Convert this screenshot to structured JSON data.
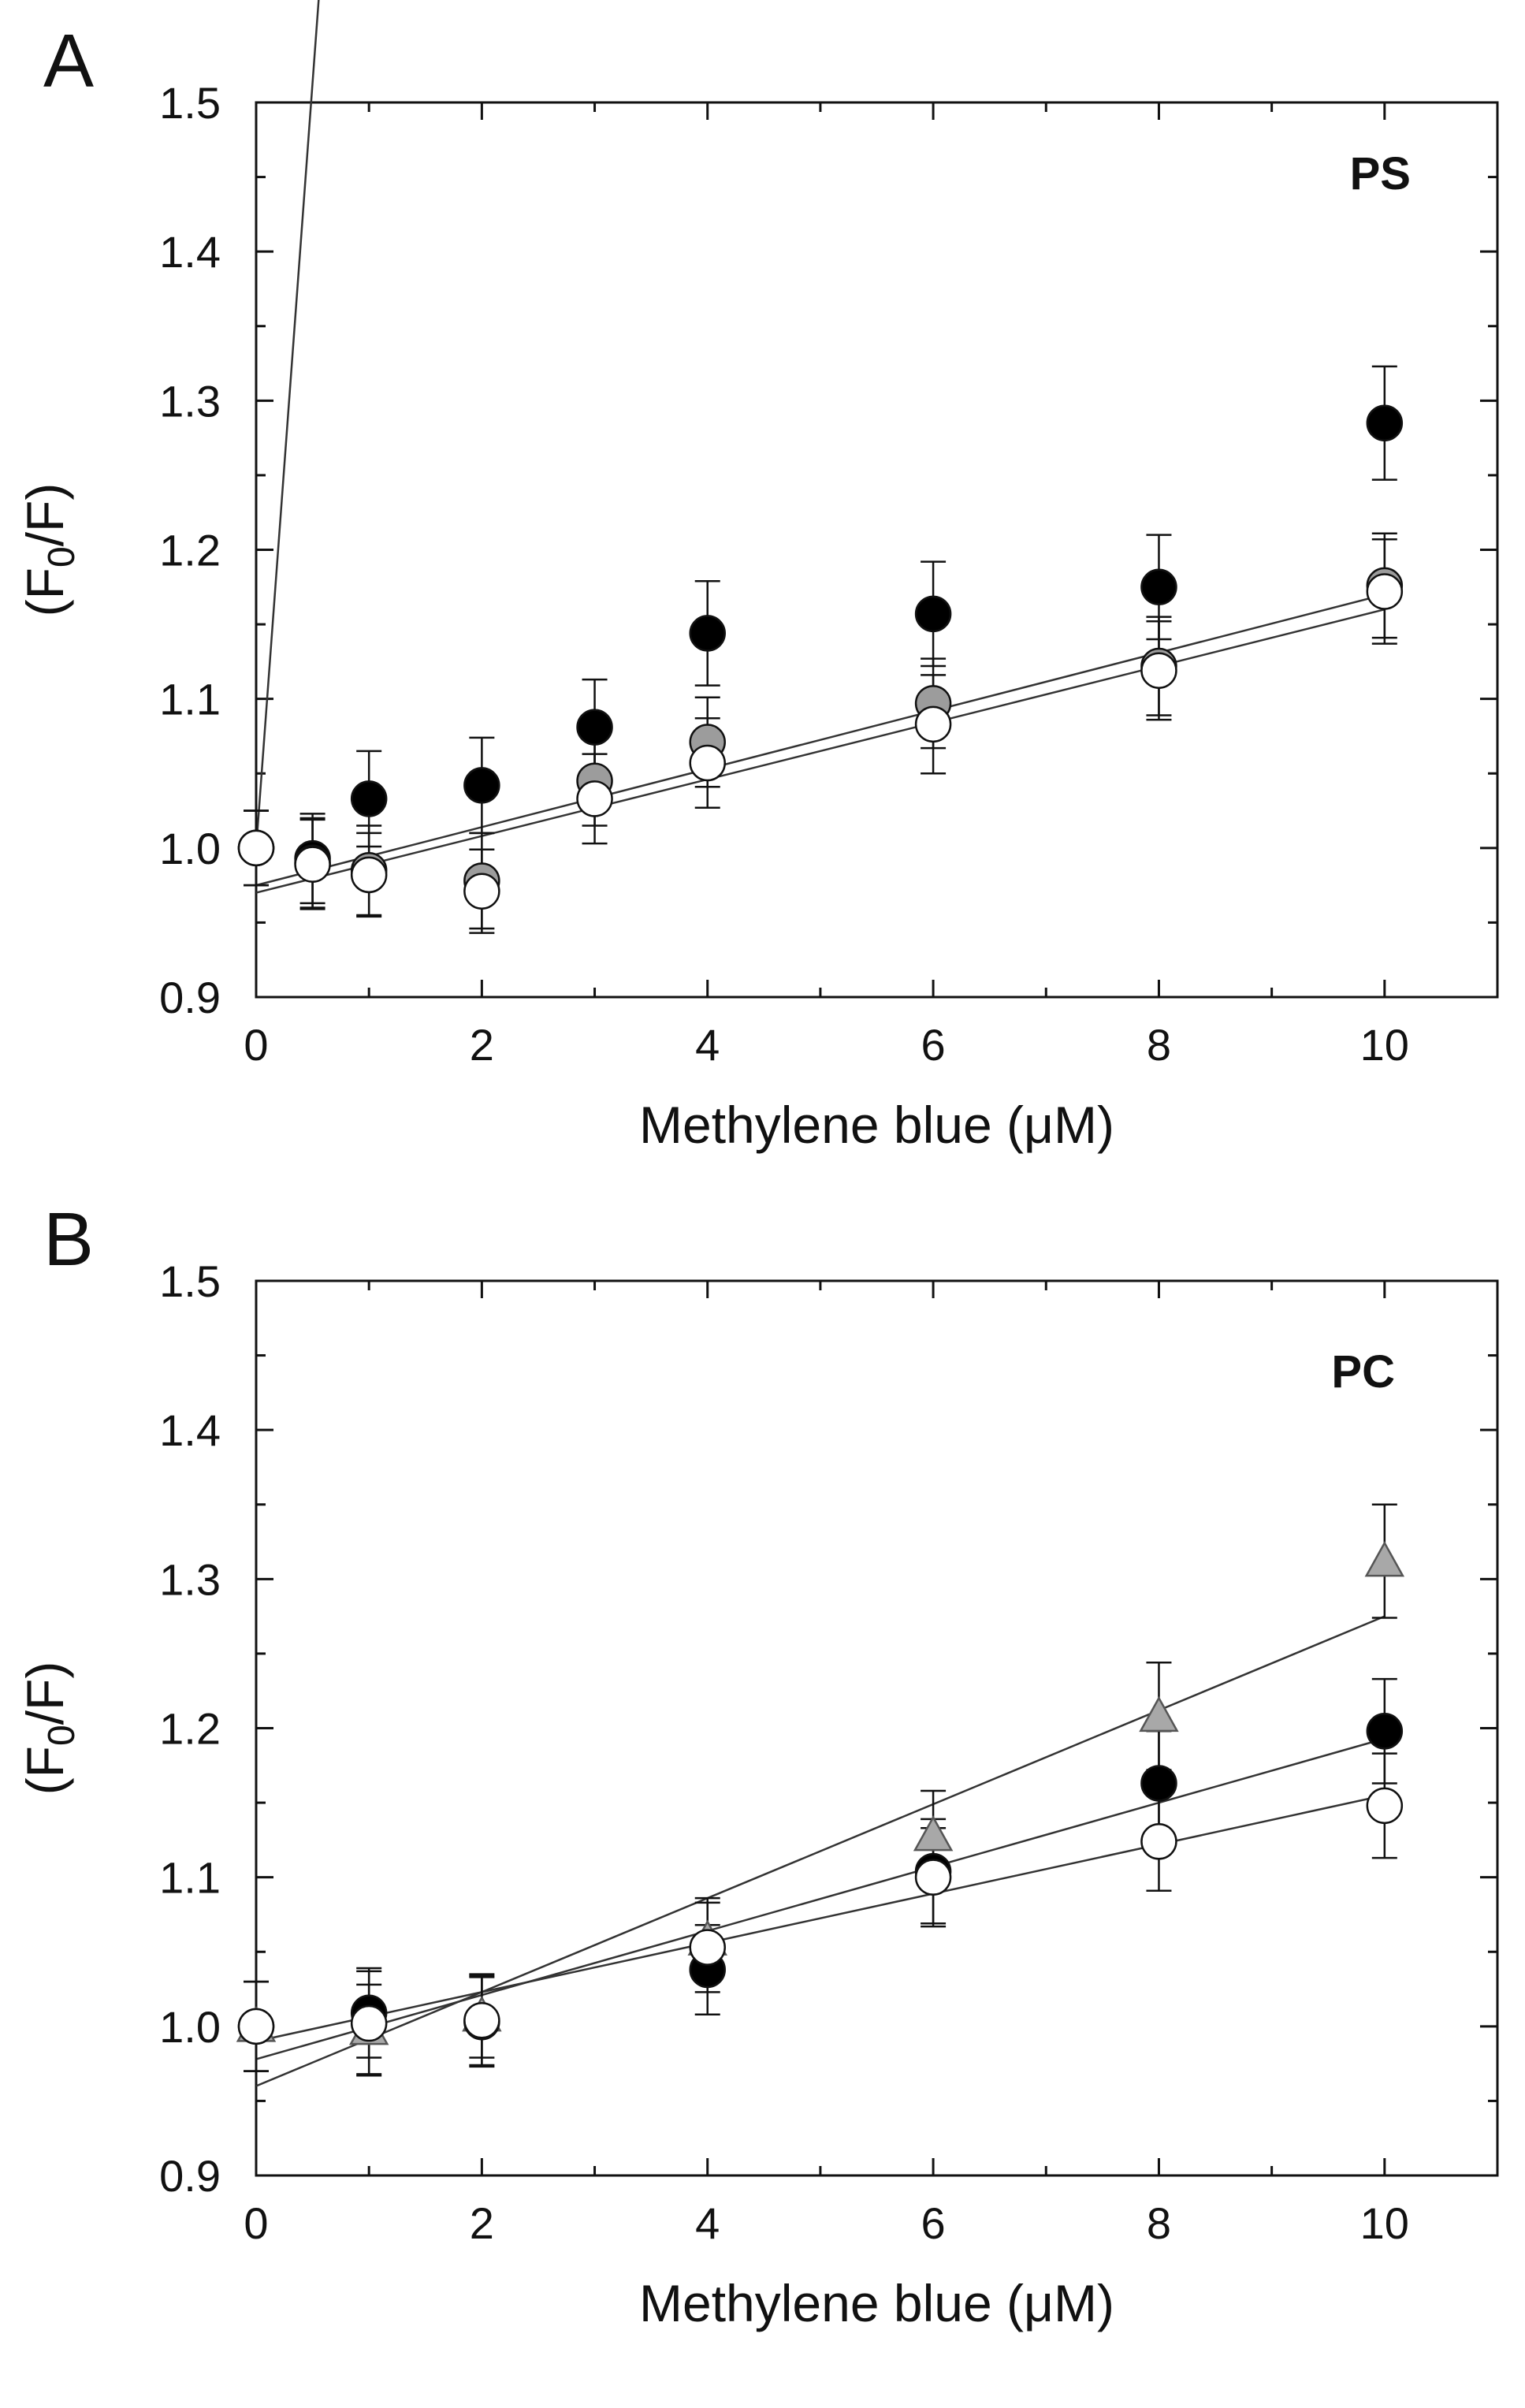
{
  "figure": {
    "background": "#ffffff",
    "ink": "#111111"
  },
  "chart_data": [
    {
      "type": "scatter",
      "panel_letter": "A",
      "inset_label": "PS",
      "xlabel": "Methylene blue (μM)",
      "ylabel_main": "(F",
      "ylabel_sub": "0",
      "ylabel_tail": "/F)",
      "xlim": [
        0,
        11
      ],
      "ylim": [
        0.9,
        1.5
      ],
      "xticks": [
        0,
        2,
        4,
        6,
        8,
        10
      ],
      "yticks": [
        0.9,
        1.0,
        1.1,
        1.2,
        1.3,
        1.4,
        1.5
      ],
      "xtick_labels": [
        "0",
        "2",
        "4",
        "6",
        "8",
        "10"
      ],
      "ytick_labels": [
        "0.9",
        "1.0",
        "1.1",
        "1.2",
        "1.3",
        "1.4",
        "1.5"
      ],
      "series": [
        {
          "name": "black-circles",
          "marker": "circle",
          "fill": "#000000",
          "x": [
            0,
            0.5,
            1,
            2,
            3,
            4,
            6,
            8,
            10
          ],
          "y": [
            1.0,
            0.993,
            1.033,
            1.042,
            1.081,
            1.144,
            1.157,
            1.175,
            1.285
          ],
          "err": [
            0.025,
            0.03,
            0.032,
            0.032,
            0.032,
            0.035,
            0.035,
            0.035,
            0.038
          ],
          "fit": [
            1.0,
            1.0265
          ]
        },
        {
          "name": "grey-circles",
          "marker": "circle",
          "fill": "#9c9c9c",
          "x": [
            0,
            0.5,
            1,
            2,
            3,
            4,
            6,
            8,
            10
          ],
          "y": [
            1.0,
            0.99,
            0.985,
            0.978,
            1.045,
            1.071,
            1.097,
            1.122,
            1.176
          ],
          "err": [
            0.025,
            0.03,
            0.03,
            0.032,
            0.03,
            0.03,
            0.03,
            0.033,
            0.035
          ],
          "fit": [
            0.975,
            0.0195
          ]
        },
        {
          "name": "open-circles",
          "marker": "circle",
          "fill": "#ffffff",
          "x": [
            0,
            0.5,
            1,
            2,
            3,
            4,
            6,
            8,
            10
          ],
          "y": [
            1.0,
            0.989,
            0.982,
            0.971,
            1.033,
            1.057,
            1.083,
            1.119,
            1.172
          ],
          "err": [
            0.025,
            0.03,
            0.028,
            0.028,
            0.03,
            0.03,
            0.033,
            0.033,
            0.035
          ],
          "fit": [
            0.97,
            0.019
          ]
        }
      ]
    },
    {
      "type": "scatter",
      "panel_letter": "B",
      "inset_label": "PC",
      "xlabel": "Methylene blue (μM)",
      "ylabel_main": "(F",
      "ylabel_sub": "0",
      "ylabel_tail": "/F)",
      "xlim": [
        0,
        11
      ],
      "ylim": [
        0.9,
        1.5
      ],
      "xticks": [
        0,
        2,
        4,
        6,
        8,
        10
      ],
      "yticks": [
        0.9,
        1.0,
        1.1,
        1.2,
        1.3,
        1.4,
        1.5
      ],
      "xtick_labels": [
        "0",
        "2",
        "4",
        "6",
        "8",
        "10"
      ],
      "ytick_labels": [
        "0.9",
        "1.0",
        "1.1",
        "1.2",
        "1.3",
        "1.4",
        "1.5"
      ],
      "series": [
        {
          "name": "grey-triangles",
          "marker": "triangle",
          "fill": "#a8a8a8",
          "x": [
            0,
            1,
            2,
            4,
            6,
            8,
            10
          ],
          "y": [
            1.0,
            0.998,
            1.007,
            1.058,
            1.128,
            1.208,
            1.312
          ],
          "err": [
            0.03,
            0.03,
            0.028,
            0.028,
            0.03,
            0.036,
            0.038
          ],
          "fit": [
            0.96,
            0.0315
          ]
        },
        {
          "name": "black-circles",
          "marker": "circle",
          "fill": "#000000",
          "x": [
            0,
            1,
            2,
            4,
            6,
            8,
            10
          ],
          "y": [
            1.0,
            1.009,
            1.003,
            1.038,
            1.104,
            1.163,
            1.198
          ],
          "err": [
            0.03,
            0.03,
            0.03,
            0.03,
            0.035,
            0.035,
            0.035
          ],
          "fit": [
            0.978,
            0.0215
          ]
        },
        {
          "name": "open-circles",
          "marker": "circle",
          "fill": "#ffffff",
          "x": [
            0,
            1,
            2,
            4,
            6,
            8,
            10
          ],
          "y": [
            1.0,
            1.002,
            1.004,
            1.053,
            1.1,
            1.124,
            1.148
          ],
          "err": [
            0.03,
            0.035,
            0.03,
            0.03,
            0.033,
            0.033,
            0.035
          ],
          "fit": [
            0.99,
            0.0165
          ]
        }
      ]
    }
  ]
}
